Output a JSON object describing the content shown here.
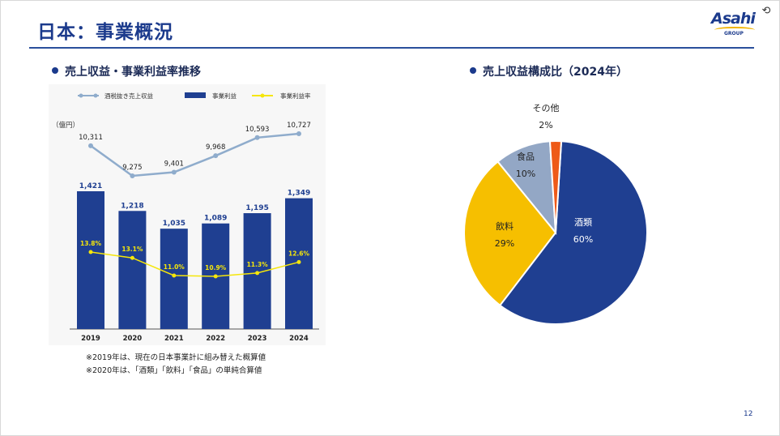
{
  "page": {
    "title": "日本：事業概況",
    "page_number": "12",
    "logo_text": "Asahi",
    "logo_subtext": "GROUP"
  },
  "left_section": {
    "title": "売上収益・事業利益率推移",
    "unit": "（億円）",
    "notes": [
      "※2019年は、現在の日本事業計に組み替えた概算値",
      "※2020年は、「酒類」「飲料」「食品」の単純合算値"
    ]
  },
  "right_section": {
    "title": "売上収益構成比（2024年）"
  },
  "colors": {
    "navy": "#1f3f91",
    "line_blue": "#8faccc",
    "yellow": "#f5e60a",
    "gold": "#f6bf00",
    "gray_blue": "#93a7c5",
    "orange": "#ee5a18"
  },
  "chart_data": [
    {
      "type": "bar",
      "title": "売上収益・事業利益率推移",
      "categories": [
        "2019",
        "2020",
        "2021",
        "2022",
        "2023",
        "2024"
      ],
      "series": [
        {
          "name": "酒税抜き売上収益",
          "kind": "line",
          "values": [
            10311,
            9275,
            9401,
            9968,
            10593,
            10727
          ],
          "labels": [
            "10,311",
            "9,275",
            "9,401",
            "9,968",
            "10,593",
            "10,727"
          ]
        },
        {
          "name": "事業利益",
          "kind": "bar",
          "values": [
            1421,
            1218,
            1035,
            1089,
            1195,
            1349
          ],
          "labels": [
            "1,421",
            "1,218",
            "1,035",
            "1,089",
            "1,195",
            "1,349"
          ]
        },
        {
          "name": "事業利益率",
          "kind": "line",
          "values": [
            13.8,
            13.1,
            11.0,
            10.9,
            11.3,
            12.6
          ],
          "labels": [
            "13.8%",
            "13.1%",
            "11.0%",
            "10.9%",
            "11.3%",
            "12.6%"
          ]
        }
      ],
      "ylabel": "（億円）",
      "legend_position": "top"
    },
    {
      "type": "pie",
      "title": "売上収益構成比（2024年）",
      "slices": [
        {
          "name": "酒類",
          "value": 60,
          "label": "60%"
        },
        {
          "name": "飲料",
          "value": 29,
          "label": "29%"
        },
        {
          "name": "食品",
          "value": 10,
          "label": "10%"
        },
        {
          "name": "その他",
          "value": 2,
          "label": "2%"
        }
      ]
    }
  ]
}
